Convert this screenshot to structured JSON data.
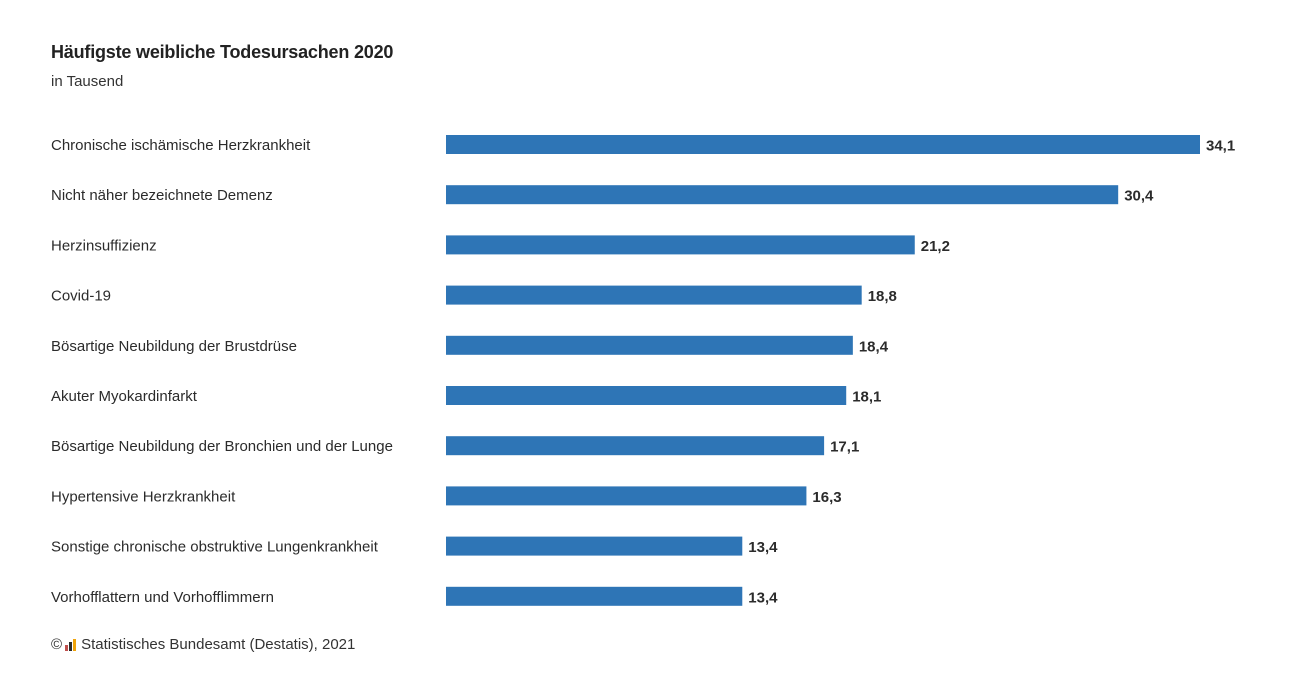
{
  "chart_data": {
    "type": "bar",
    "orientation": "horizontal",
    "title": "Häufigste weibliche Todesursachen 2020",
    "subtitle": "in Tausend",
    "categories": [
      "Chronische ischämische Herzkrankheit",
      "Nicht näher bezeichnete Demenz",
      "Herzinsuffizienz",
      "Covid-19",
      "Bösartige Neubildung der Brustdrüse",
      "Akuter Myokardinfarkt",
      "Bösartige Neubildung der Bronchien und der Lunge",
      "Hypertensive Herzkrankheit",
      "Sonstige chronische obstruktive Lungenkrankheit",
      "Vorhofflattern und Vorhofflimmern"
    ],
    "values": [
      34.1,
      30.4,
      21.2,
      18.8,
      18.4,
      18.1,
      17.1,
      16.3,
      13.4,
      13.4
    ],
    "value_labels": [
      "34,1",
      "30,4",
      "21,2",
      "18,8",
      "18,4",
      "18,1",
      "17,1",
      "16,3",
      "13,4",
      "13,4"
    ],
    "bar_color": "#2e75b6",
    "xlim": [
      0,
      34.1
    ],
    "grid": false,
    "legend": "none"
  },
  "source": {
    "copyright_symbol": "©",
    "text": "Statistisches Bundesamt (Destatis), 2021",
    "logo_colors": [
      "#c0504d",
      "#2b2b2b",
      "#f0a30a"
    ]
  }
}
